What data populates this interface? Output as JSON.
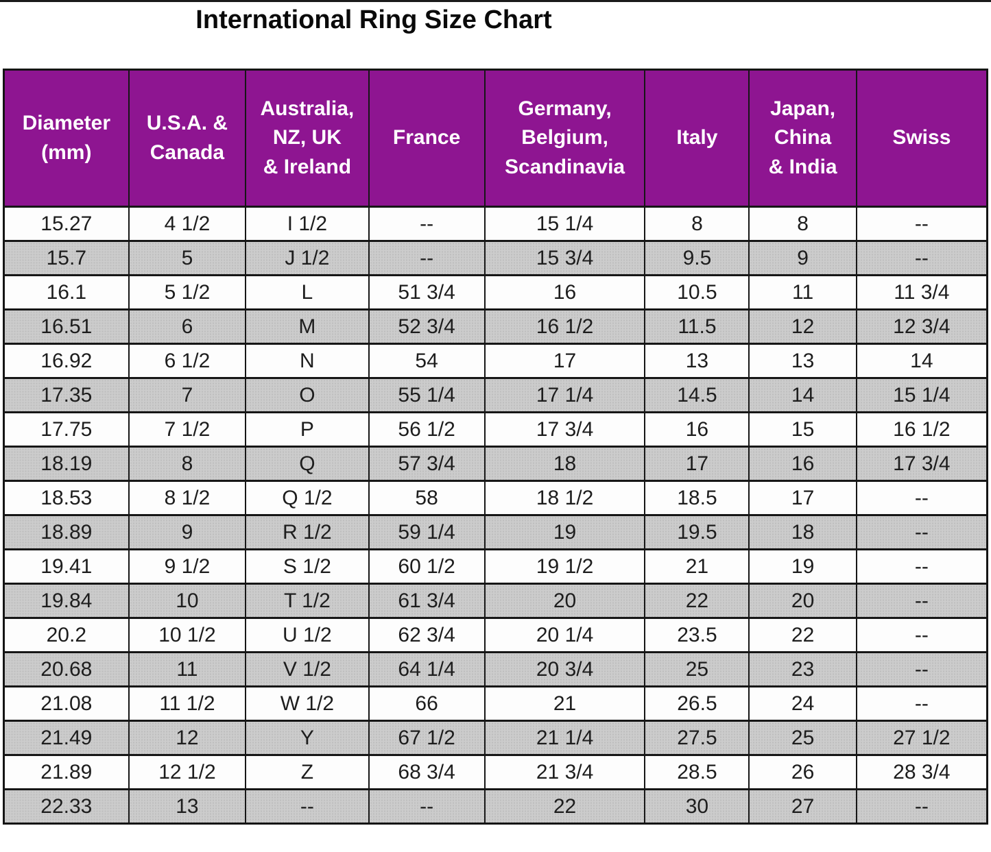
{
  "page": {
    "title": "International Ring Size Chart"
  },
  "chart_data": {
    "type": "table",
    "title": "International Ring Size Chart",
    "columns": [
      "Diameter (mm)",
      "U.S.A. & Canada",
      "Australia, NZ, UK & Ireland",
      "France",
      "Germany, Belgium, Scandinavia",
      "Italy",
      "Japan, China & India",
      "Swiss"
    ],
    "header_lines": [
      [
        "Diameter",
        "(mm)"
      ],
      [
        "U.S.A. &",
        "Canada"
      ],
      [
        "Australia,",
        "NZ, UK",
        "& Ireland"
      ],
      [
        "France"
      ],
      [
        "Germany,",
        "Belgium,",
        "Scandinavia"
      ],
      [
        "Italy"
      ],
      [
        "Japan,",
        "China",
        "& India"
      ],
      [
        "Swiss"
      ]
    ],
    "rows": [
      [
        "15.27",
        "4 1/2",
        "I 1/2",
        "--",
        "15 1/4",
        "8",
        "8",
        "--"
      ],
      [
        "15.7",
        "5",
        "J 1/2",
        "--",
        "15 3/4",
        "9.5",
        "9",
        "--"
      ],
      [
        "16.1",
        "5 1/2",
        "L",
        "51 3/4",
        "16",
        "10.5",
        "11",
        "11 3/4"
      ],
      [
        "16.51",
        "6",
        "M",
        "52 3/4",
        "16 1/2",
        "11.5",
        "12",
        "12 3/4"
      ],
      [
        "16.92",
        "6 1/2",
        "N",
        "54",
        "17",
        "13",
        "13",
        "14"
      ],
      [
        "17.35",
        "7",
        "O",
        "55 1/4",
        "17 1/4",
        "14.5",
        "14",
        "15 1/4"
      ],
      [
        "17.75",
        "7 1/2",
        "P",
        "56 1/2",
        "17 3/4",
        "16",
        "15",
        "16 1/2"
      ],
      [
        "18.19",
        "8",
        "Q",
        "57 3/4",
        "18",
        "17",
        "16",
        "17 3/4"
      ],
      [
        "18.53",
        "8 1/2",
        "Q 1/2",
        "58",
        "18 1/2",
        "18.5",
        "17",
        "--"
      ],
      [
        "18.89",
        "9",
        "R 1/2",
        "59 1/4",
        "19",
        "19.5",
        "18",
        "--"
      ],
      [
        "19.41",
        "9 1/2",
        "S 1/2",
        "60 1/2",
        "19 1/2",
        "21",
        "19",
        "--"
      ],
      [
        "19.84",
        "10",
        "T 1/2",
        "61 3/4",
        "20",
        "22",
        "20",
        "--"
      ],
      [
        "20.2",
        "10 1/2",
        "U 1/2",
        "62 3/4",
        "20 1/4",
        "23.5",
        "22",
        "--"
      ],
      [
        "20.68",
        "11",
        "V 1/2",
        "64 1/4",
        "20 3/4",
        "25",
        "23",
        "--"
      ],
      [
        "21.08",
        "11 1/2",
        "W 1/2",
        "66",
        "21",
        "26.5",
        "24",
        "--"
      ],
      [
        "21.49",
        "12",
        "Y",
        "67 1/2",
        "21 1/4",
        "27.5",
        "25",
        "27 1/2"
      ],
      [
        "21.89",
        "12 1/2",
        "Z",
        "68 3/4",
        "21 3/4",
        "28.5",
        "26",
        "28 3/4"
      ],
      [
        "22.33",
        "13",
        "--",
        "--",
        "22",
        "30",
        "27",
        "--"
      ]
    ],
    "layout": {
      "striping": "alternating rows shaded, first row white",
      "legend_position": "none",
      "grid": "full black cell borders"
    },
    "colors": {
      "header_bg": "#8e1591",
      "header_text": "#ffffff",
      "row_bg": "#fdfdfd",
      "row_alt_bg": "#cccccc",
      "border": "#161616",
      "title_text": "#0a0a0a"
    }
  }
}
